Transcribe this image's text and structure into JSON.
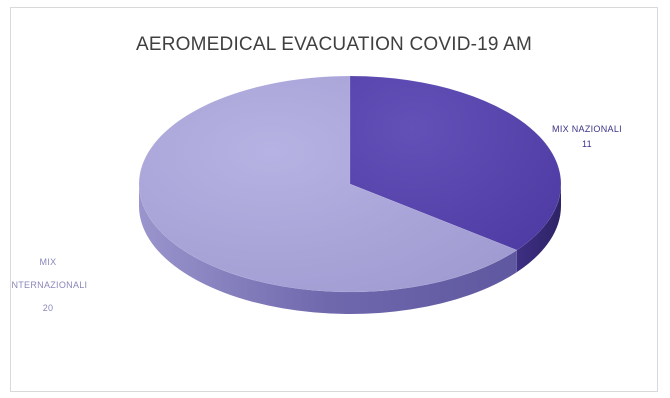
{
  "chart_data": {
    "type": "pie",
    "title": "AEROMEDICAL EVACUATION COVID-19 AM",
    "three_d": true,
    "slices": [
      {
        "label": "MIX NAZIONALI",
        "value": 11,
        "value_label": "11",
        "label_color": "#3b3486",
        "colors": {
          "top": "#5a45ad",
          "side": "#3a2d7c"
        }
      },
      {
        "label": "MIX INTERNAZIONALI",
        "label_lines": [
          "MIX",
          "INTERNAZIONALI"
        ],
        "value": 20,
        "value_label": "20",
        "label_color": "#8a87b8",
        "colors": {
          "top": "#a7a3d6",
          "side": "#7a73b7"
        }
      }
    ],
    "legend": "none",
    "start_angle_deg": -90
  }
}
